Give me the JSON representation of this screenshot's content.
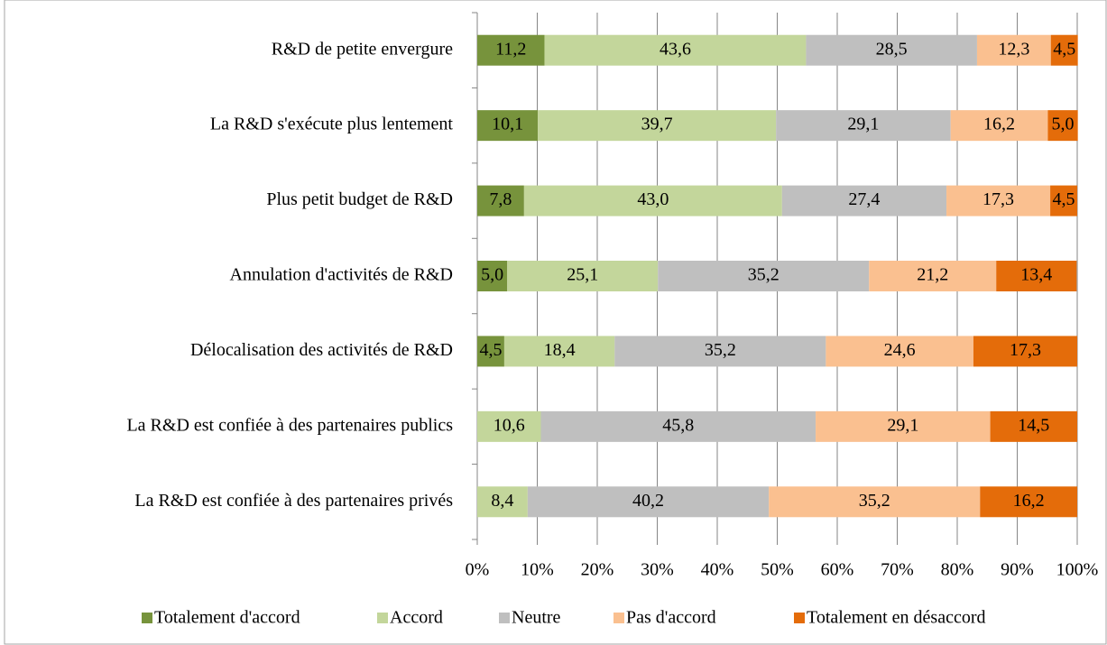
{
  "chart_data": {
    "type": "stacked_barh",
    "categories": [
      "R&D de petite envergure",
      "La R&D s'exécute plus lentement",
      "Plus petit budget de R&D",
      "Annulation d'activités de R&D",
      "Délocalisation des activités de R&D",
      "La R&D est confiée à des partenaires publics",
      "La R&D est confiée à des partenaires privés"
    ],
    "series": [
      {
        "name": "Totalement d'accord",
        "color": "#77933c",
        "values": [
          11.2,
          10.1,
          7.8,
          5.0,
          4.5,
          null,
          null
        ],
        "value_labels": [
          "11,2",
          "10,1",
          "7,8",
          "5,0",
          "4,5",
          null,
          null
        ]
      },
      {
        "name": "Accord",
        "color": "#c3d69b",
        "values": [
          43.6,
          39.7,
          43.0,
          25.1,
          18.4,
          10.6,
          8.4
        ],
        "value_labels": [
          "43,6",
          "39,7",
          "43,0",
          "25,1",
          "18,4",
          "10,6",
          "8,4"
        ]
      },
      {
        "name": "Neutre",
        "color": "#bfbfbf",
        "values": [
          28.5,
          29.1,
          27.4,
          35.2,
          35.2,
          45.8,
          40.2
        ],
        "value_labels": [
          "28,5",
          "29,1",
          "27,4",
          "35,2",
          "35,2",
          "45,8",
          "40,2"
        ]
      },
      {
        "name": "Pas d'accord",
        "color": "#fac090",
        "values": [
          12.3,
          16.2,
          17.3,
          21.2,
          24.6,
          29.1,
          35.2
        ],
        "value_labels": [
          "12,3",
          "16,2",
          "17,3",
          "21,2",
          "24,6",
          "29,1",
          "35,2"
        ]
      },
      {
        "name": "Totalement en désaccord",
        "color": "#e46c0a",
        "values": [
          4.5,
          5.0,
          4.5,
          13.4,
          17.3,
          14.5,
          16.2
        ],
        "value_labels": [
          "4,5",
          "5,0",
          "4,5",
          "13,4",
          "17,3",
          "14,5",
          "16,2"
        ]
      }
    ],
    "xlim": [
      0,
      100
    ],
    "xticks": [
      {
        "value": 0,
        "label": "0%"
      },
      {
        "value": 10,
        "label": "10%"
      },
      {
        "value": 20,
        "label": "20%"
      },
      {
        "value": 30,
        "label": "30%"
      },
      {
        "value": 40,
        "label": "40%"
      },
      {
        "value": 50,
        "label": "50%"
      },
      {
        "value": 60,
        "label": "60%"
      },
      {
        "value": 70,
        "label": "70%"
      },
      {
        "value": 80,
        "label": "80%"
      },
      {
        "value": 90,
        "label": "90%"
      },
      {
        "value": 100,
        "label": "100%"
      }
    ],
    "grid": true,
    "legend": "bottom"
  }
}
